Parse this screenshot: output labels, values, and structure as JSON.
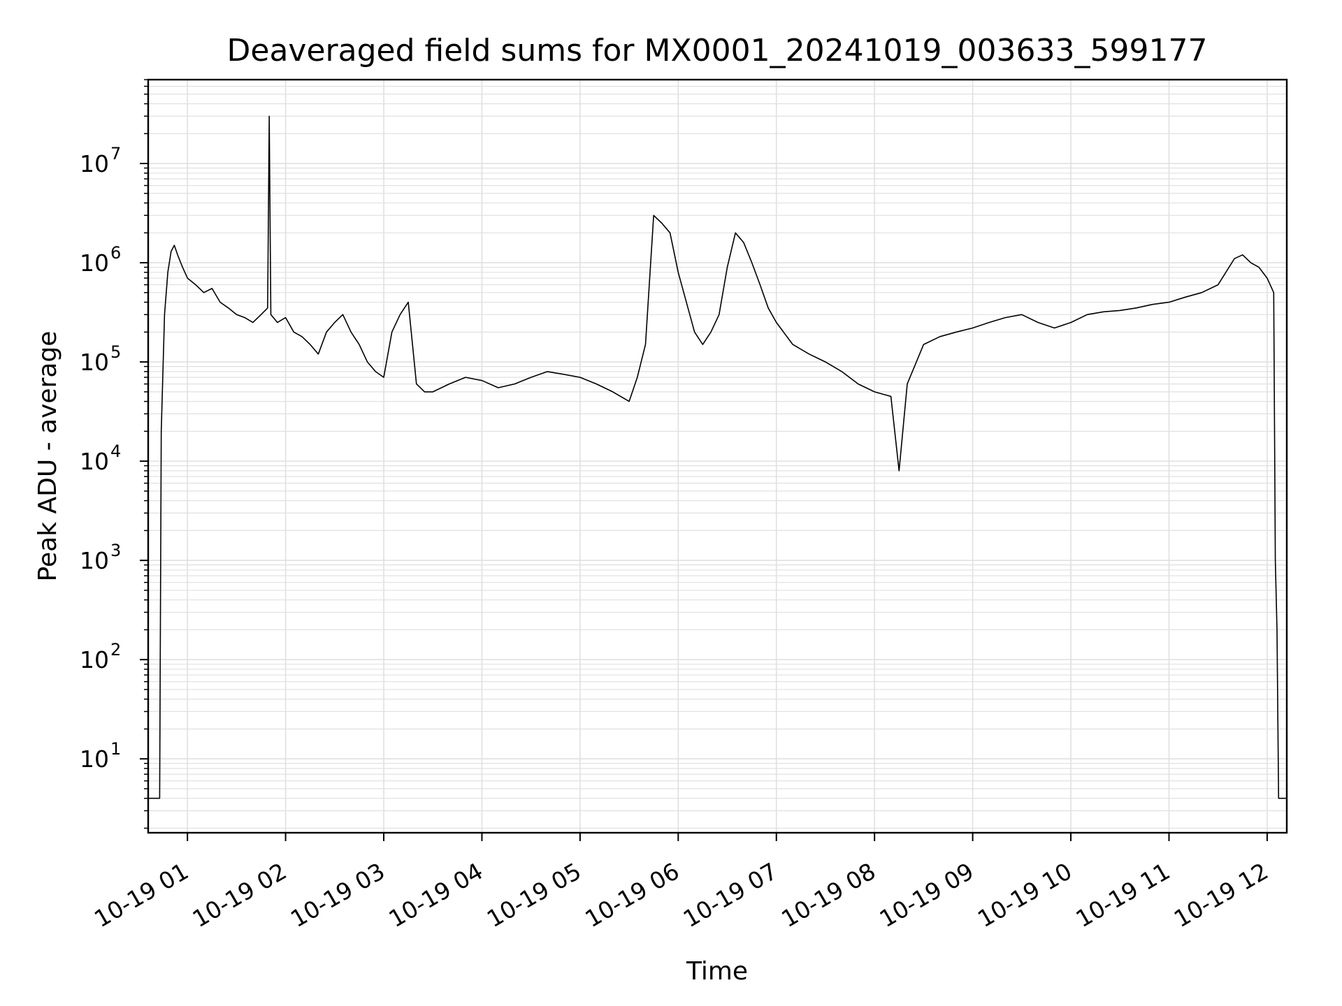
{
  "chart_data": {
    "type": "line",
    "title": "Deaveraged field sums for MX0001_20241019_003633_599177",
    "xlabel": "Time",
    "ylabel": "Peak ADU - average",
    "x_scale": "time",
    "y_scale": "log",
    "xlim": [
      "2024-10-19 00:36",
      "2024-10-19 12:12"
    ],
    "ylim": [
      1.8,
      70000000
    ],
    "grid": true,
    "legend": "none",
    "x_ticks": [
      {
        "time": "2024-10-19 01:00",
        "label": "10-19 01"
      },
      {
        "time": "2024-10-19 02:00",
        "label": "10-19 02"
      },
      {
        "time": "2024-10-19 03:00",
        "label": "10-19 03"
      },
      {
        "time": "2024-10-19 04:00",
        "label": "10-19 04"
      },
      {
        "time": "2024-10-19 05:00",
        "label": "10-19 05"
      },
      {
        "time": "2024-10-19 06:00",
        "label": "10-19 06"
      },
      {
        "time": "2024-10-19 07:00",
        "label": "10-19 07"
      },
      {
        "time": "2024-10-19 08:00",
        "label": "10-19 08"
      },
      {
        "time": "2024-10-19 09:00",
        "label": "10-19 09"
      },
      {
        "time": "2024-10-19 10:00",
        "label": "10-19 10"
      },
      {
        "time": "2024-10-19 11:00",
        "label": "10-19 11"
      },
      {
        "time": "2024-10-19 12:00",
        "label": "10-19 12"
      }
    ],
    "y_ticks": [
      {
        "value": 10,
        "base": "10",
        "exp": "1"
      },
      {
        "value": 100,
        "base": "10",
        "exp": "2"
      },
      {
        "value": 1000,
        "base": "10",
        "exp": "3"
      },
      {
        "value": 10000,
        "base": "10",
        "exp": "4"
      },
      {
        "value": 100000,
        "base": "10",
        "exp": "5"
      },
      {
        "value": 1000000,
        "base": "10",
        "exp": "6"
      },
      {
        "value": 10000000,
        "base": "10",
        "exp": "7"
      }
    ],
    "colors": {
      "line": "#000000",
      "grid": "#e0e0e0",
      "axes": "#000000"
    },
    "series": [
      {
        "x": [
          "2024-10-19 00:36",
          "2024-10-19 00:43",
          "2024-10-19 00:44",
          "2024-10-19 00:46",
          "2024-10-19 00:48",
          "2024-10-19 00:50",
          "2024-10-19 00:52",
          "2024-10-19 00:54",
          "2024-10-19 00:57",
          "2024-10-19 01:00",
          "2024-10-19 01:05",
          "2024-10-19 01:10",
          "2024-10-19 01:15",
          "2024-10-19 01:20",
          "2024-10-19 01:25",
          "2024-10-19 01:30",
          "2024-10-19 01:35",
          "2024-10-19 01:40",
          "2024-10-19 01:45",
          "2024-10-19 01:49",
          "2024-10-19 01:50",
          "2024-10-19 01:51",
          "2024-10-19 01:55",
          "2024-10-19 02:00",
          "2024-10-19 02:05",
          "2024-10-19 02:10",
          "2024-10-19 02:15",
          "2024-10-19 02:20",
          "2024-10-19 02:25",
          "2024-10-19 02:30",
          "2024-10-19 02:35",
          "2024-10-19 02:40",
          "2024-10-19 02:45",
          "2024-10-19 02:50",
          "2024-10-19 02:55",
          "2024-10-19 03:00",
          "2024-10-19 03:05",
          "2024-10-19 03:10",
          "2024-10-19 03:15",
          "2024-10-19 03:20",
          "2024-10-19 03:25",
          "2024-10-19 03:30",
          "2024-10-19 03:40",
          "2024-10-19 03:50",
          "2024-10-19 04:00",
          "2024-10-19 04:10",
          "2024-10-19 04:20",
          "2024-10-19 04:30",
          "2024-10-19 04:40",
          "2024-10-19 04:50",
          "2024-10-19 05:00",
          "2024-10-19 05:10",
          "2024-10-19 05:20",
          "2024-10-19 05:30",
          "2024-10-19 05:35",
          "2024-10-19 05:40",
          "2024-10-19 05:45",
          "2024-10-19 05:50",
          "2024-10-19 05:55",
          "2024-10-19 06:00",
          "2024-10-19 06:05",
          "2024-10-19 06:10",
          "2024-10-19 06:15",
          "2024-10-19 06:20",
          "2024-10-19 06:25",
          "2024-10-19 06:30",
          "2024-10-19 06:35",
          "2024-10-19 06:40",
          "2024-10-19 06:45",
          "2024-10-19 06:50",
          "2024-10-19 06:55",
          "2024-10-19 07:00",
          "2024-10-19 07:10",
          "2024-10-19 07:20",
          "2024-10-19 07:30",
          "2024-10-19 07:40",
          "2024-10-19 07:50",
          "2024-10-19 08:00",
          "2024-10-19 08:10",
          "2024-10-19 08:15",
          "2024-10-19 08:20",
          "2024-10-19 08:30",
          "2024-10-19 08:40",
          "2024-10-19 08:50",
          "2024-10-19 09:00",
          "2024-10-19 09:10",
          "2024-10-19 09:20",
          "2024-10-19 09:30",
          "2024-10-19 09:40",
          "2024-10-19 09:50",
          "2024-10-19 10:00",
          "2024-10-19 10:10",
          "2024-10-19 10:20",
          "2024-10-19 10:30",
          "2024-10-19 10:40",
          "2024-10-19 10:50",
          "2024-10-19 11:00",
          "2024-10-19 11:10",
          "2024-10-19 11:20",
          "2024-10-19 11:30",
          "2024-10-19 11:40",
          "2024-10-19 11:45",
          "2024-10-19 11:50",
          "2024-10-19 11:55",
          "2024-10-19 12:00",
          "2024-10-19 12:04",
          "2024-10-19 12:05",
          "2024-10-19 12:06",
          "2024-10-19 12:07",
          "2024-10-19 12:12"
        ],
        "y": [
          4,
          4,
          20000,
          300000,
          800000,
          1300000,
          1500000,
          1200000,
          900000,
          700000,
          600000,
          500000,
          550000,
          400000,
          350000,
          300000,
          280000,
          250000,
          300000,
          350000,
          30000000,
          300000,
          250000,
          280000,
          200000,
          180000,
          150000,
          120000,
          200000,
          250000,
          300000,
          200000,
          150000,
          100000,
          80000,
          70000,
          200000,
          300000,
          400000,
          60000,
          50000,
          50000,
          60000,
          70000,
          65000,
          55000,
          60000,
          70000,
          80000,
          75000,
          70000,
          60000,
          50000,
          40000,
          70000,
          150000,
          3000000,
          2500000,
          2000000,
          800000,
          400000,
          200000,
          150000,
          200000,
          300000,
          900000,
          2000000,
          1600000,
          1000000,
          600000,
          350000,
          250000,
          150000,
          120000,
          100000,
          80000,
          60000,
          50000,
          45000,
          8000,
          60000,
          150000,
          180000,
          200000,
          220000,
          250000,
          280000,
          300000,
          250000,
          220000,
          250000,
          300000,
          320000,
          330000,
          350000,
          380000,
          400000,
          450000,
          500000,
          600000,
          1100000,
          1200000,
          1000000,
          900000,
          700000,
          500000,
          1000,
          200,
          4,
          4
        ]
      }
    ]
  }
}
